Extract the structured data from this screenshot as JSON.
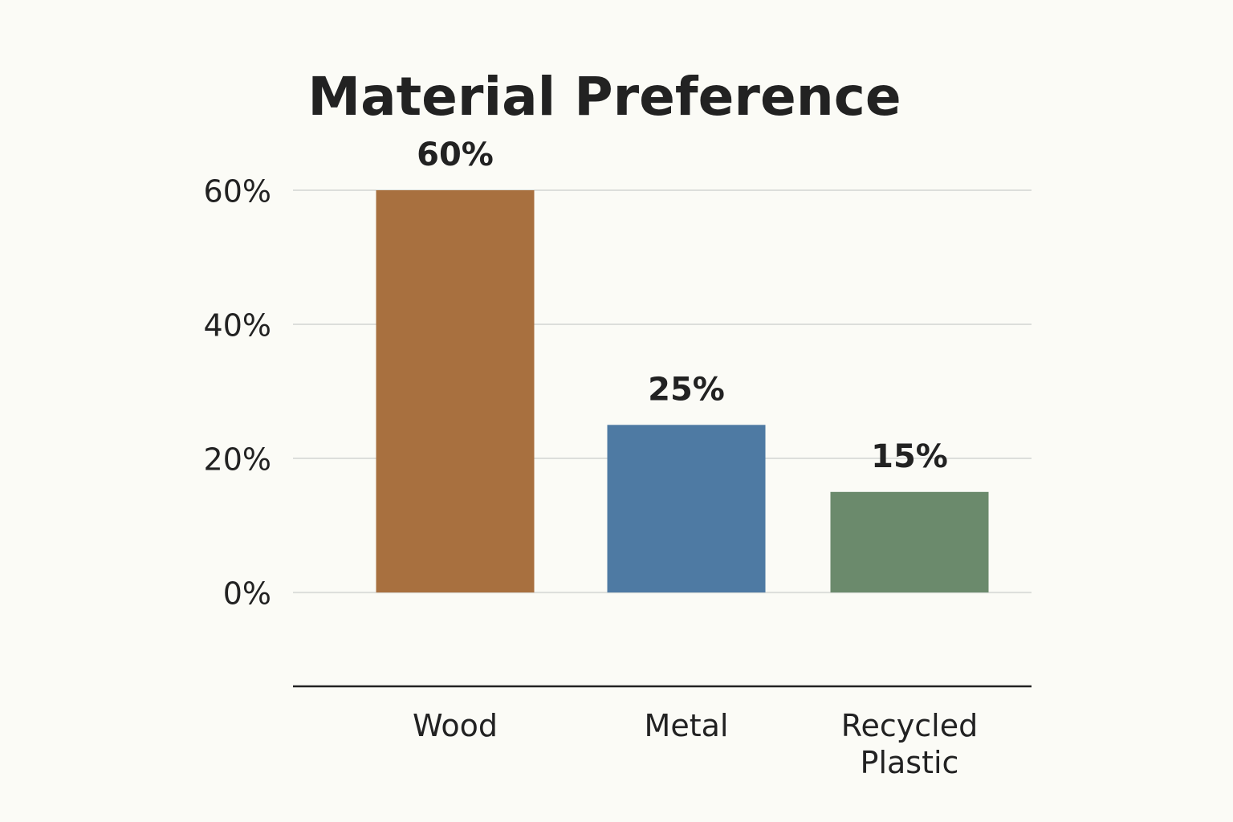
{
  "chart_data": {
    "type": "bar",
    "title": "Material Preference",
    "categories": [
      "Wood",
      "Metal",
      "Recycled Plastic"
    ],
    "values": [
      60,
      25,
      15
    ],
    "value_labels": [
      "60%",
      "25%",
      "15%"
    ],
    "colors": [
      "#a8703f",
      "#4e7aa3",
      "#6b8a6c"
    ],
    "ylim": [
      -14,
      60
    ],
    "yticks": [
      {
        "value": 0,
        "label": "0%"
      },
      {
        "value": 20,
        "label": "20%"
      },
      {
        "value": 40,
        "label": "40%"
      },
      {
        "value": 60,
        "label": "60%"
      }
    ],
    "grid": true
  }
}
